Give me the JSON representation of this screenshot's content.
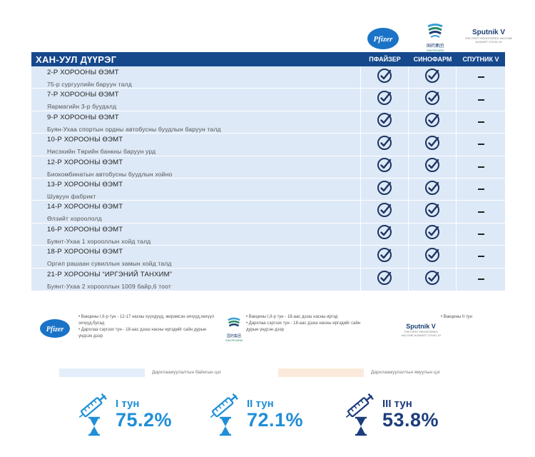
{
  "colors": {
    "header_bg": "#16488c",
    "row_bg": "#dde9f7",
    "dose1": "#1f8ed8",
    "dose2": "#1f8ed8",
    "dose3": "#1c3d7d",
    "legend_blue": "#e3eefa",
    "legend_orange": "#fbeadc"
  },
  "logos": {
    "pfizer": "Pfizer",
    "sinopharm_cn": "国药集团",
    "sinopharm_en": "SINOPHARM",
    "sputnik": "Sputnik V",
    "sputnik_sub": "THE FIRST REGISTERED VACCINE AGAINST COVID-19"
  },
  "table": {
    "district": "ХАН-УУЛ ДҮҮРЭГ",
    "columns": [
      "ПФАЙЗЕР",
      "СИНОФАРМ",
      "СПУТНИК V"
    ],
    "rows": [
      {
        "title": "2-Р ХОРООНЫ ӨЭМТ",
        "sub": "75-р сургуулийн баруун талд",
        "marks": [
          "check-icon",
          "check-icon",
          "dash"
        ]
      },
      {
        "title": "7-Р ХОРООНЫ ӨЭМТ",
        "sub": "Яармагийн 3-р буудалд",
        "marks": [
          "check-icon",
          "check-icon",
          "dash"
        ]
      },
      {
        "title": "9-Р ХОРООНЫ ӨЭМТ",
        "sub": "Буян-Ухаа спортын ордны автобусны буудлын баруун талд",
        "marks": [
          "check-icon",
          "check-icon",
          "dash"
        ]
      },
      {
        "title": "10-Р ХОРООНЫ ӨЭМТ",
        "sub": "Нисэхийн Төрийн банкны баруун урд",
        "marks": [
          "check-icon",
          "check-icon",
          "dash"
        ]
      },
      {
        "title": "12-Р ХОРООНЫ ӨЭМТ",
        "sub": "Биокомбинатын автобусны буудлын хойно",
        "marks": [
          "check-icon",
          "check-icon",
          "dash"
        ]
      },
      {
        "title": "13-Р ХОРООНЫ ӨЭМТ",
        "sub": "Шувуун фабрикт",
        "marks": [
          "check-icon",
          "check-icon",
          "dash"
        ]
      },
      {
        "title": "14-Р ХОРООНЫ ӨЭМТ",
        "sub": "Өлзийт хороололд",
        "marks": [
          "check-icon",
          "check-icon",
          "dash"
        ]
      },
      {
        "title": "16-Р ХОРООНЫ ӨЭМТ",
        "sub": "Буянт-Ухаа 1 хорооллын хойд талд",
        "marks": [
          "check-icon",
          "check-icon",
          "dash"
        ]
      },
      {
        "title": "18-Р ХОРООНЫ ӨЭМТ",
        "sub": "Оргил рашаан сувиллын замын хойд талд",
        "marks": [
          "check-icon",
          "check-icon",
          "dash"
        ]
      },
      {
        "title": "21-Р ХОРООНЫ “ИРГЭНИЙ ТАНХИМ”",
        "sub": "Буянт-Ухаа 2 хорооллын 1009 байр,6 тоот",
        "marks": [
          "check-icon",
          "check-icon",
          "dash"
        ]
      }
    ]
  },
  "notes": {
    "pfizer": [
      "Вакцины I,II-р тун - 12-17 насны хүүхдүүд, жирэмсэн эхчүүд,хөхүүл эхчүүд,бусад",
      "Дархлаа сэргээх тун - 18-аас дээш насны иргэдийг сайн дурын үндсэн дээр"
    ],
    "sinopharm": [
      "Вакцины I,II-р тун - 18-аас дээш насны иргэд",
      "Дархлаа сэргээх тун - 18-аас дээш насны иргэдийг сайн дурын үндсэн дээр"
    ],
    "sputnik": [
      "Вакцины II тун"
    ]
  },
  "legend": {
    "available": "Дархлаажуулалтын байнгын цэг",
    "mobile": "Дархлаажуулалтын явуулын цэг"
  },
  "doses": [
    {
      "label": "I тун",
      "pct": "75.2%",
      "level": 75.2
    },
    {
      "label": "II тун",
      "pct": "72.1%",
      "level": 72.1
    },
    {
      "label": "III тун",
      "pct": "53.8%",
      "level": 53.8
    }
  ]
}
